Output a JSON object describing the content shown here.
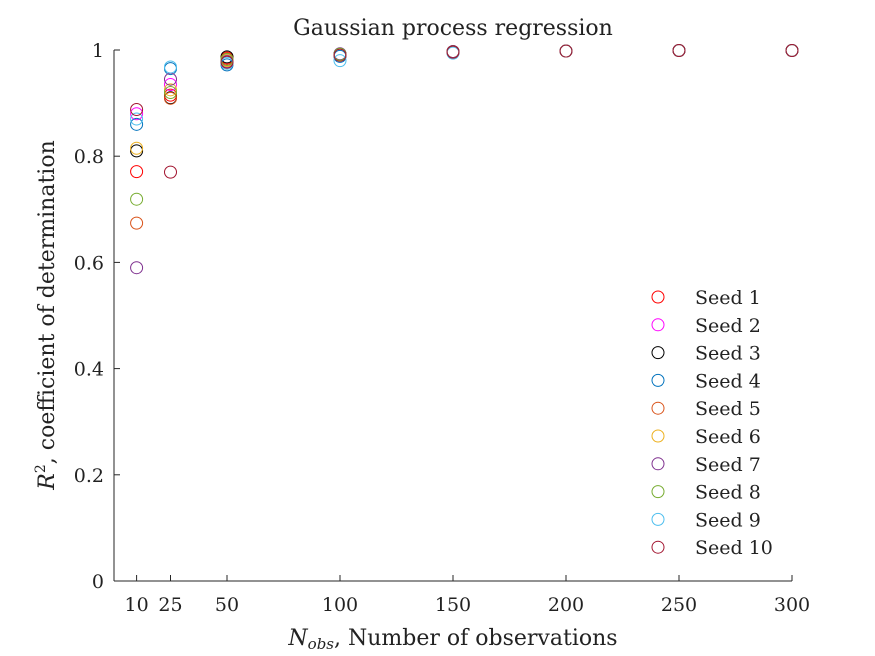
{
  "chart_data": {
    "type": "scatter",
    "title": "Gaussian process regression",
    "xlabel": "N_obs, Number of observations",
    "xlabel_main": "N",
    "xlabel_sub": "obs",
    "xlabel_rest": ", Number of observations",
    "ylabel": "R², coefficient of determination",
    "ylabel_main": "R",
    "ylabel_sup": "2",
    "ylabel_rest": ", coefficient of determination",
    "xlim": [
      0,
      300
    ],
    "ylim": [
      0,
      1
    ],
    "x_ticks": [
      10,
      25,
      50,
      100,
      150,
      200,
      250,
      300
    ],
    "x_tick_labels": [
      "10",
      "25",
      "50",
      "100",
      "150",
      "200",
      "250",
      "300"
    ],
    "y_ticks": [
      0,
      0.2,
      0.4,
      0.6,
      0.8,
      1
    ],
    "y_tick_labels": [
      "0",
      "0.2",
      "0.4",
      "0.6",
      "0.8",
      "1"
    ],
    "grid": false,
    "legend_position": "bottom-right",
    "marker": "open-circle",
    "x": [
      10,
      25,
      50,
      100,
      150,
      200,
      250,
      300
    ],
    "series": [
      {
        "name": "Seed 1",
        "color": "#ff0000",
        "values": [
          0.771,
          0.915,
          0.985,
          0.992,
          0.997,
          0.998,
          0.999,
          0.999
        ]
      },
      {
        "name": "Seed 2",
        "color": "#ff00ff",
        "values": [
          0.88,
          0.935,
          0.98,
          0.991,
          0.996,
          0.998,
          0.999,
          0.999
        ]
      },
      {
        "name": "Seed 3",
        "color": "#000000",
        "values": [
          0.81,
          0.91,
          0.987,
          0.992,
          0.997,
          0.998,
          0.999,
          0.999
        ]
      },
      {
        "name": "Seed 4",
        "color": "#0072bd",
        "values": [
          0.86,
          0.965,
          0.972,
          0.988,
          0.996,
          0.998,
          0.999,
          0.999
        ]
      },
      {
        "name": "Seed 5",
        "color": "#d95319",
        "values": [
          0.674,
          0.909,
          0.983,
          0.992,
          0.997,
          0.998,
          0.999,
          0.999
        ]
      },
      {
        "name": "Seed 6",
        "color": "#edb120",
        "values": [
          0.815,
          0.925,
          0.98,
          0.991,
          0.996,
          0.998,
          0.999,
          0.999
        ]
      },
      {
        "name": "Seed 7",
        "color": "#7e2f8e",
        "values": [
          0.59,
          0.945,
          0.978,
          0.993,
          0.997,
          0.998,
          0.999,
          0.999
        ]
      },
      {
        "name": "Seed 8",
        "color": "#77ac30",
        "values": [
          0.719,
          0.92,
          0.982,
          0.992,
          0.996,
          0.998,
          0.999,
          0.999
        ]
      },
      {
        "name": "Seed 9",
        "color": "#4dbeee",
        "values": [
          0.87,
          0.968,
          0.975,
          0.98,
          0.994,
          0.998,
          0.999,
          0.999
        ]
      },
      {
        "name": "Seed 10",
        "color": "#a2142f",
        "values": [
          0.888,
          0.77,
          0.977,
          0.99,
          0.996,
          0.998,
          0.999,
          0.999
        ]
      }
    ]
  }
}
